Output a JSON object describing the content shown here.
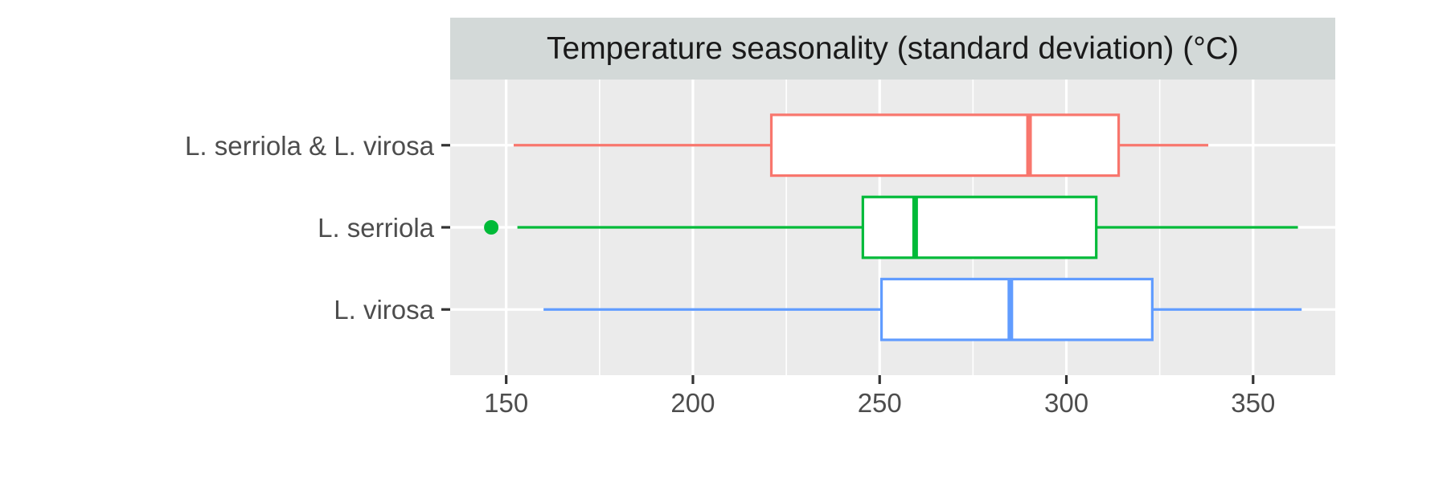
{
  "chart_data": {
    "type": "boxplot",
    "title": "Temperature seasonality (standard deviation) (°C)",
    "xlabel": "",
    "ylabel": "",
    "xlim": [
      135,
      372
    ],
    "x_ticks": [
      150,
      200,
      250,
      300,
      350
    ],
    "x_tick_labels": [
      "150",
      "200",
      "250",
      "300",
      "350"
    ],
    "x_minor_grid": [
      175,
      225,
      275,
      325
    ],
    "grid": true,
    "legend": "none",
    "colors": {
      "panel_background": "#ebebeb",
      "strip_background": "#d3d9d8",
      "grid": "#ffffff"
    },
    "categories": [
      "L. serriola & L. virosa",
      "L. serriola",
      "L. virosa"
    ],
    "series": [
      {
        "category": "L. serriola & L. virosa",
        "color": "#f8766d",
        "whisker_low": 152,
        "q1": 221,
        "median": 290,
        "q3": 314,
        "whisker_high": 338,
        "outliers": []
      },
      {
        "category": "L. serriola",
        "color": "#00ba38",
        "whisker_low": 153,
        "q1": 245.5,
        "median": 259.5,
        "q3": 308,
        "whisker_high": 362,
        "outliers": [
          146
        ]
      },
      {
        "category": "L. virosa",
        "color": "#619cff",
        "whisker_low": 160,
        "q1": 250.5,
        "median": 285,
        "q3": 323,
        "whisker_high": 363,
        "outliers": []
      }
    ]
  }
}
